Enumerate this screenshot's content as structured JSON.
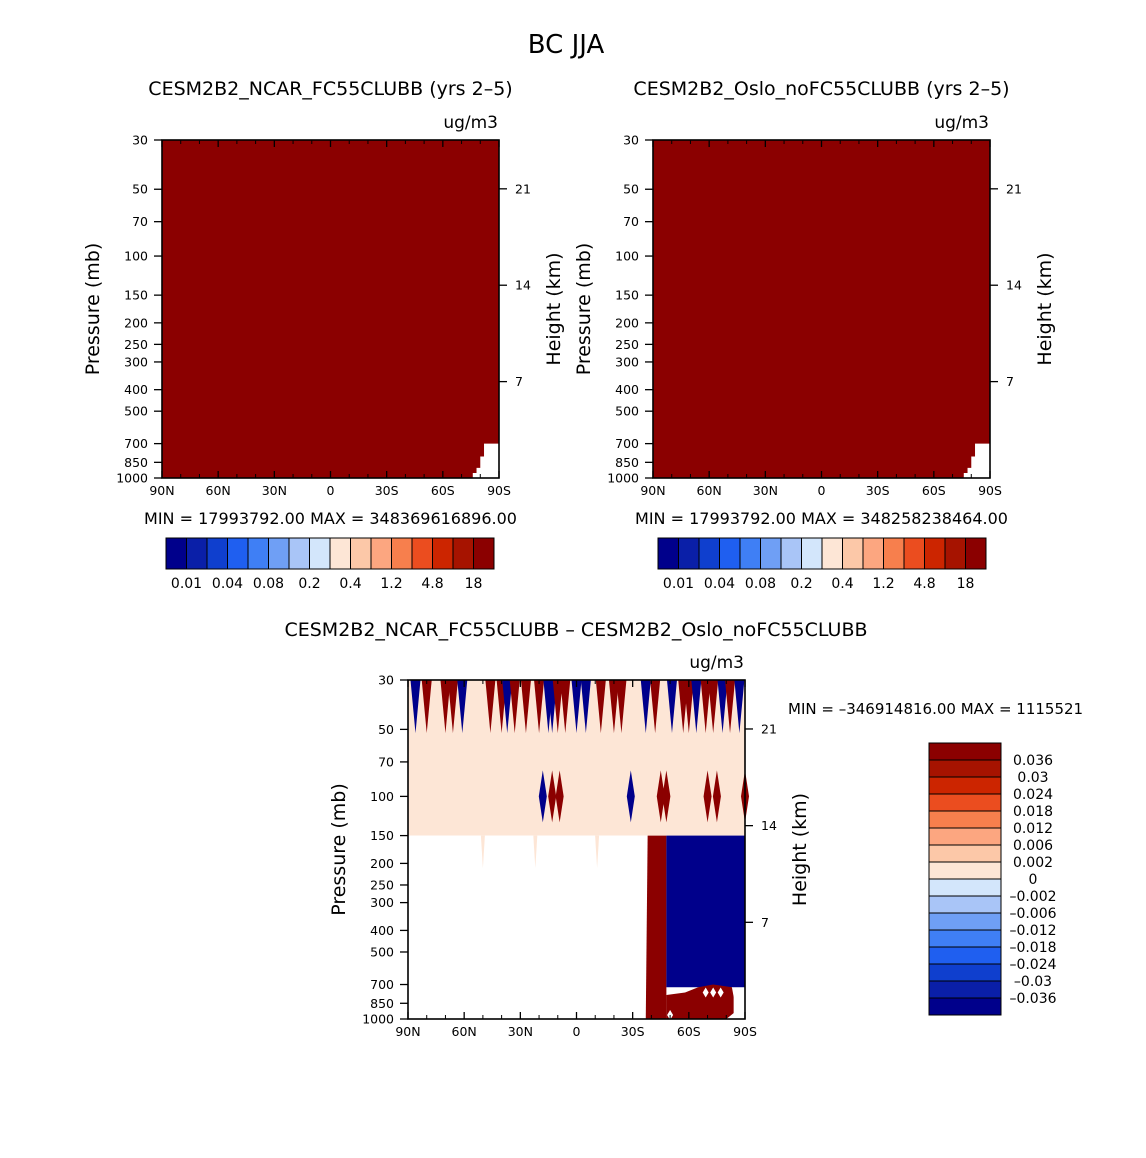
{
  "title": "BC JJA",
  "colors": {
    "dark_red": "#8b0000",
    "blank": "#ffffff",
    "diff_zero_fill": "#fde6d6",
    "dark_blue": "#00008b"
  },
  "chart_data": [
    {
      "type": "heatmap",
      "id": "panel-ncar",
      "title": "CESM2B2_NCAR_FC55CLUBB (yrs 2–5)",
      "units": "ug/m3",
      "ylabel": "Pressure (mb)",
      "ylabel_right": "Height (km)",
      "x_ticks": [
        "90N",
        "60N",
        "30N",
        "0",
        "30S",
        "60S",
        "90S"
      ],
      "y_ticks": [
        30,
        50,
        70,
        100,
        150,
        200,
        250,
        300,
        400,
        500,
        700,
        850,
        1000
      ],
      "height_ticks": [
        21,
        14,
        7
      ],
      "xlim": [
        90,
        -90
      ],
      "ylim": [
        1000,
        30
      ],
      "stats": "MIN = 17993792.00   MAX = 348369616896.00",
      "colorbar": {
        "colors": [
          "#00008b",
          "#0a1fa8",
          "#0f3fce",
          "#1f5ff0",
          "#3f7ff5",
          "#6f9ff5",
          "#a9c5f7",
          "#d3e6fb",
          "#fde6d6",
          "#fcc8a8",
          "#fca680",
          "#f77f4d",
          "#eb4d1f",
          "#cc2500",
          "#a61300",
          "#8b0000"
        ],
        "tick_labels": [
          "0.01",
          "0.04",
          "0.08",
          "0.2",
          "0.4",
          "1.2",
          "4.8",
          "18"
        ]
      }
    },
    {
      "type": "heatmap",
      "id": "panel-oslo",
      "title": "CESM2B2_Oslo_noFC55CLUBB (yrs 2–5)",
      "units": "ug/m3",
      "ylabel": "Pressure (mb)",
      "ylabel_right": "Height (km)",
      "x_ticks": [
        "90N",
        "60N",
        "30N",
        "0",
        "30S",
        "60S",
        "90S"
      ],
      "y_ticks": [
        30,
        50,
        70,
        100,
        150,
        200,
        250,
        300,
        400,
        500,
        700,
        850,
        1000
      ],
      "height_ticks": [
        21,
        14,
        7
      ],
      "xlim": [
        90,
        -90
      ],
      "ylim": [
        1000,
        30
      ],
      "stats": "MIN = 17993792.00   MAX = 348258238464.00",
      "colorbar": {
        "colors": [
          "#00008b",
          "#0a1fa8",
          "#0f3fce",
          "#1f5ff0",
          "#3f7ff5",
          "#6f9ff5",
          "#a9c5f7",
          "#d3e6fb",
          "#fde6d6",
          "#fcc8a8",
          "#fca680",
          "#f77f4d",
          "#eb4d1f",
          "#cc2500",
          "#a61300",
          "#8b0000"
        ],
        "tick_labels": [
          "0.01",
          "0.04",
          "0.08",
          "0.2",
          "0.4",
          "1.2",
          "4.8",
          "18"
        ]
      }
    },
    {
      "type": "heatmap",
      "id": "panel-diff",
      "title": "CESM2B2_NCAR_FC55CLUBB – CESM2B2_Oslo_noFC55CLUBB",
      "units": "ug/m3",
      "ylabel": "Pressure (mb)",
      "ylabel_right": "Height (km)",
      "x_ticks": [
        "90N",
        "60N",
        "30N",
        "0",
        "30S",
        "60S",
        "90S"
      ],
      "y_ticks": [
        30,
        50,
        70,
        100,
        150,
        200,
        250,
        300,
        400,
        500,
        700,
        850,
        1000
      ],
      "height_ticks": [
        21,
        14,
        7
      ],
      "xlim": [
        90,
        -90
      ],
      "ylim": [
        1000,
        30
      ],
      "stats": "MIN = –346914816.00   MAX = 1115521",
      "colorbar": {
        "colors": [
          "#8b0000",
          "#a61300",
          "#cc2500",
          "#eb4d1f",
          "#f77f4d",
          "#fca680",
          "#fcc8a8",
          "#fde6d6",
          "#d3e6fb",
          "#a9c5f7",
          "#6f9ff5",
          "#3f7ff5",
          "#1f5ff0",
          "#0f3fce",
          "#0a1fa8",
          "#00008b"
        ],
        "tick_labels": [
          "0.036",
          "0.03",
          "0.024",
          "0.018",
          "0.012",
          "0.006",
          "0.002",
          "0",
          "–0.002",
          "–0.006",
          "–0.012",
          "–0.018",
          "–0.024",
          "–0.03",
          "–0.036"
        ]
      }
    }
  ]
}
